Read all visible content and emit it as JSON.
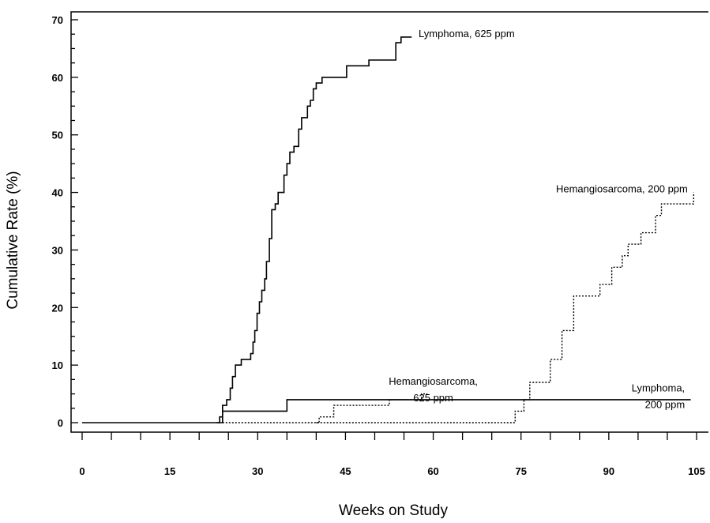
{
  "chart_data": {
    "type": "line",
    "xlabel": "Weeks on Study",
    "ylabel": "Cumulative Rate (%)",
    "xlim": [
      0,
      105
    ],
    "ylim": [
      0,
      70
    ],
    "x_ticks": [
      0,
      15,
      30,
      45,
      60,
      75,
      90,
      105
    ],
    "y_ticks": [
      0,
      10,
      20,
      30,
      40,
      50,
      60,
      70
    ],
    "grid": false,
    "series": [
      {
        "key": "lymphoma_625",
        "style": "solid",
        "points": [
          [
            0,
            0
          ],
          [
            23,
            0
          ],
          [
            23.5,
            1
          ],
          [
            24,
            3
          ],
          [
            24.7,
            4
          ],
          [
            25.3,
            6
          ],
          [
            25.7,
            8
          ],
          [
            26.2,
            10
          ],
          [
            27.2,
            11
          ],
          [
            28.8,
            12
          ],
          [
            29.2,
            14
          ],
          [
            29.5,
            16
          ],
          [
            29.9,
            19
          ],
          [
            30.3,
            21
          ],
          [
            30.7,
            23
          ],
          [
            31.2,
            25
          ],
          [
            31.5,
            28
          ],
          [
            32,
            32
          ],
          [
            32.4,
            37
          ],
          [
            33,
            38
          ],
          [
            33.5,
            40
          ],
          [
            34.5,
            43
          ],
          [
            35,
            45
          ],
          [
            35.5,
            47
          ],
          [
            36.2,
            48
          ],
          [
            37,
            51
          ],
          [
            37.5,
            53
          ],
          [
            38.5,
            55
          ],
          [
            39,
            56
          ],
          [
            39.5,
            58
          ],
          [
            40,
            59
          ],
          [
            41,
            60
          ],
          [
            45.2,
            62
          ],
          [
            49,
            63
          ],
          [
            53.6,
            66
          ],
          [
            54.5,
            67
          ],
          [
            56.3,
            67
          ]
        ]
      },
      {
        "key": "lymphoma_200",
        "style": "solid",
        "points": [
          [
            23,
            0
          ],
          [
            24,
            2
          ],
          [
            35,
            4
          ],
          [
            104,
            4
          ]
        ]
      },
      {
        "key": "hemangiosarcoma_625",
        "style": "dotted",
        "points": [
          [
            24,
            0
          ],
          [
            73.5,
            0
          ],
          [
            74,
            2
          ],
          [
            75.5,
            3
          ],
          [
            75.5,
            4
          ]
        ]
      },
      {
        "key": "hemangiosarcoma_200",
        "style": "dotted",
        "points": [
          [
            40,
            0
          ],
          [
            40.5,
            1
          ],
          [
            43,
            3
          ],
          [
            52.5,
            4
          ],
          [
            58,
            5
          ],
          [
            59,
            5
          ]
        ]
      },
      {
        "key": "hemangiosarcoma_200_late",
        "style": "dotted",
        "points": [
          [
            75.6,
            4
          ],
          [
            76.5,
            7
          ],
          [
            80,
            11
          ],
          [
            82,
            16
          ],
          [
            84,
            22
          ],
          [
            88.5,
            24
          ],
          [
            90.5,
            27
          ],
          [
            92.3,
            29
          ],
          [
            93.3,
            31
          ],
          [
            95.5,
            33
          ],
          [
            98,
            36
          ],
          [
            99,
            38
          ],
          [
            104,
            38
          ],
          [
            104.5,
            40
          ]
        ]
      }
    ],
    "annotations": [
      {
        "key": "lymphoma_625",
        "lines": [
          "Lymphoma, 625 ppm"
        ],
        "anchor": [
          57.5,
          67
        ],
        "align": "start"
      },
      {
        "key": "hemangiosarcoma_200",
        "lines": [
          "Hemangiosarcoma, 200 ppm"
        ],
        "anchor": [
          103.5,
          40
        ],
        "align": "end"
      },
      {
        "key": "hemangiosarcoma_625",
        "lines": [
          "Hemangiosarcoma,",
          "625 ppm"
        ],
        "anchor": [
          60,
          6.6
        ],
        "align": "middle"
      },
      {
        "key": "lymphoma_200",
        "lines": [
          "Lymphoma,",
          "200 ppm"
        ],
        "anchor": [
          103,
          5.4
        ],
        "align": "end"
      }
    ]
  }
}
